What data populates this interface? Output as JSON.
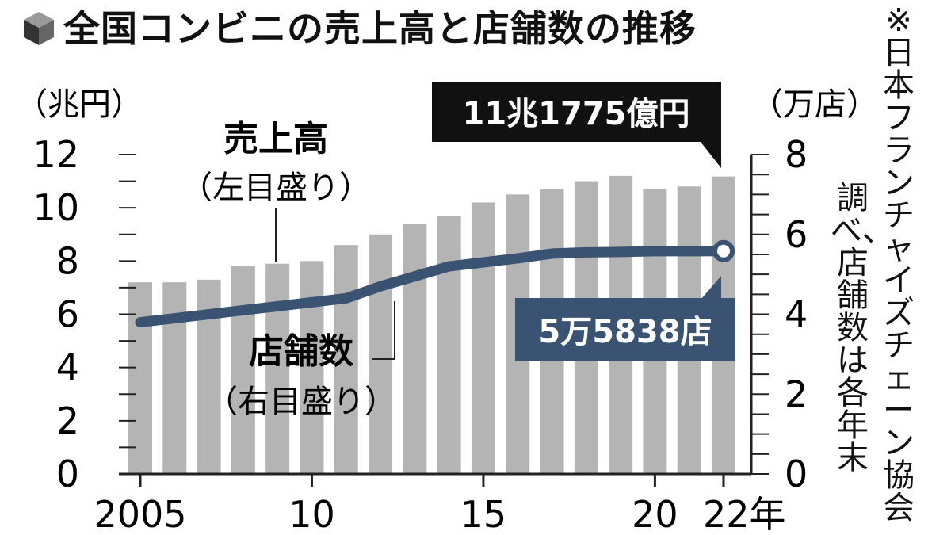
{
  "title": "全国コンビニの売上高と店舗数の推移",
  "source_note_1": "※日本フランチャイズチェーン協会",
  "source_note_2": "調べ、店舗数は各年末",
  "left_axis_unit": "（兆円）",
  "right_axis_unit": "（万店）",
  "sales_label": "売上高",
  "sales_axis_note": "（左目盛り）",
  "stores_label": "店舗数",
  "stores_axis_note": "（右目盛り）",
  "callout_sales": "11兆1775億円",
  "callout_stores": "5万5838店",
  "colors": {
    "bar": "#b4b4b4",
    "line": "#3a5372",
    "callout_sales_bg": "#111111",
    "callout_stores_bg": "#3a5372"
  },
  "chart_data": {
    "type": "bar",
    "x": [
      2005,
      2006,
      2007,
      2008,
      2009,
      2010,
      2011,
      2012,
      2013,
      2014,
      2015,
      2016,
      2017,
      2018,
      2019,
      2020,
      2021,
      2022
    ],
    "x_tick_values": [
      2005,
      2010,
      2015,
      2020,
      2022
    ],
    "x_tick_labels": [
      "2005",
      "10",
      "15",
      "20",
      "22年"
    ],
    "series": [
      {
        "name": "売上高",
        "axis": "left",
        "type": "bar",
        "values": [
          7.2,
          7.2,
          7.3,
          7.8,
          7.9,
          8.0,
          8.6,
          9.0,
          9.4,
          9.7,
          10.2,
          10.5,
          10.7,
          11.0,
          11.2,
          10.7,
          10.8,
          11.1775
        ]
      },
      {
        "name": "店舗数",
        "axis": "right",
        "type": "line",
        "values": [
          3.8,
          3.9,
          4.0,
          4.1,
          4.2,
          4.3,
          4.4,
          4.7,
          4.95,
          5.2,
          5.3,
          5.4,
          5.52,
          5.55,
          5.56,
          5.58,
          5.58,
          5.5838
        ]
      }
    ],
    "left_axis": {
      "ylim": [
        0,
        12
      ],
      "ticks": [
        0,
        2,
        4,
        6,
        8,
        10,
        12
      ]
    },
    "right_axis": {
      "ylim": [
        0,
        8
      ],
      "ticks": [
        0,
        2,
        4,
        6,
        8
      ]
    },
    "grid": false
  }
}
